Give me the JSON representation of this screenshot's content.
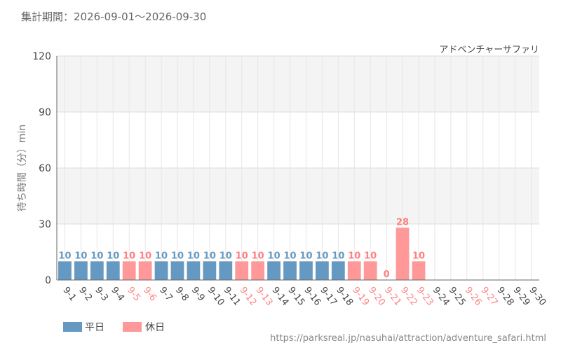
{
  "header": {
    "period": "集計期間：2026-09-01～2026-09-30"
  },
  "chart_data": {
    "type": "bar",
    "title": "アドベンチャーサファリ",
    "ylabel": "待ち時間（分）min",
    "ylim": [
      0,
      120
    ],
    "yticks": [
      0,
      30,
      60,
      90,
      120
    ],
    "grid": true,
    "legend_position": "bottom-left",
    "categories": [
      "9-1",
      "9-2",
      "9-3",
      "9-4",
      "9-5",
      "9-6",
      "9-7",
      "9-8",
      "9-9",
      "9-10",
      "9-11",
      "9-12",
      "9-13",
      "9-14",
      "9-15",
      "9-16",
      "9-17",
      "9-18",
      "9-19",
      "9-20",
      "9-21",
      "9-22",
      "9-23",
      "9-24",
      "9-25",
      "9-26",
      "9-27",
      "9-28",
      "9-29",
      "9-30"
    ],
    "values": [
      10,
      10,
      10,
      10,
      10,
      10,
      10,
      10,
      10,
      10,
      10,
      10,
      10,
      10,
      10,
      10,
      10,
      10,
      10,
      10,
      0,
      28,
      10,
      null,
      null,
      null,
      null,
      null,
      null,
      null
    ],
    "day_types": [
      "weekday",
      "weekday",
      "weekday",
      "weekday",
      "holiday",
      "holiday",
      "weekday",
      "weekday",
      "weekday",
      "weekday",
      "weekday",
      "holiday",
      "holiday",
      "weekday",
      "weekday",
      "weekday",
      "weekday",
      "weekday",
      "holiday",
      "holiday",
      "holiday",
      "holiday",
      "holiday",
      "weekday",
      "weekday",
      "holiday",
      "holiday",
      "weekday",
      "weekday",
      "weekday"
    ],
    "series": [
      {
        "name": "平日",
        "key": "weekday",
        "color": "#6699c2"
      },
      {
        "name": "休日",
        "key": "holiday",
        "color": "#ff9999"
      }
    ],
    "colors": {
      "weekday_label": "#6699c2",
      "holiday_label": "#ff8080",
      "weekday_tick": "#444444",
      "holiday_tick": "#ff8080",
      "band": "#f4f4f4",
      "grid": "#dddddd",
      "axis": "#666666"
    }
  },
  "footer": {
    "source": "https://parksreal.jp/nasuhai/attraction/adventure_safari.html"
  }
}
